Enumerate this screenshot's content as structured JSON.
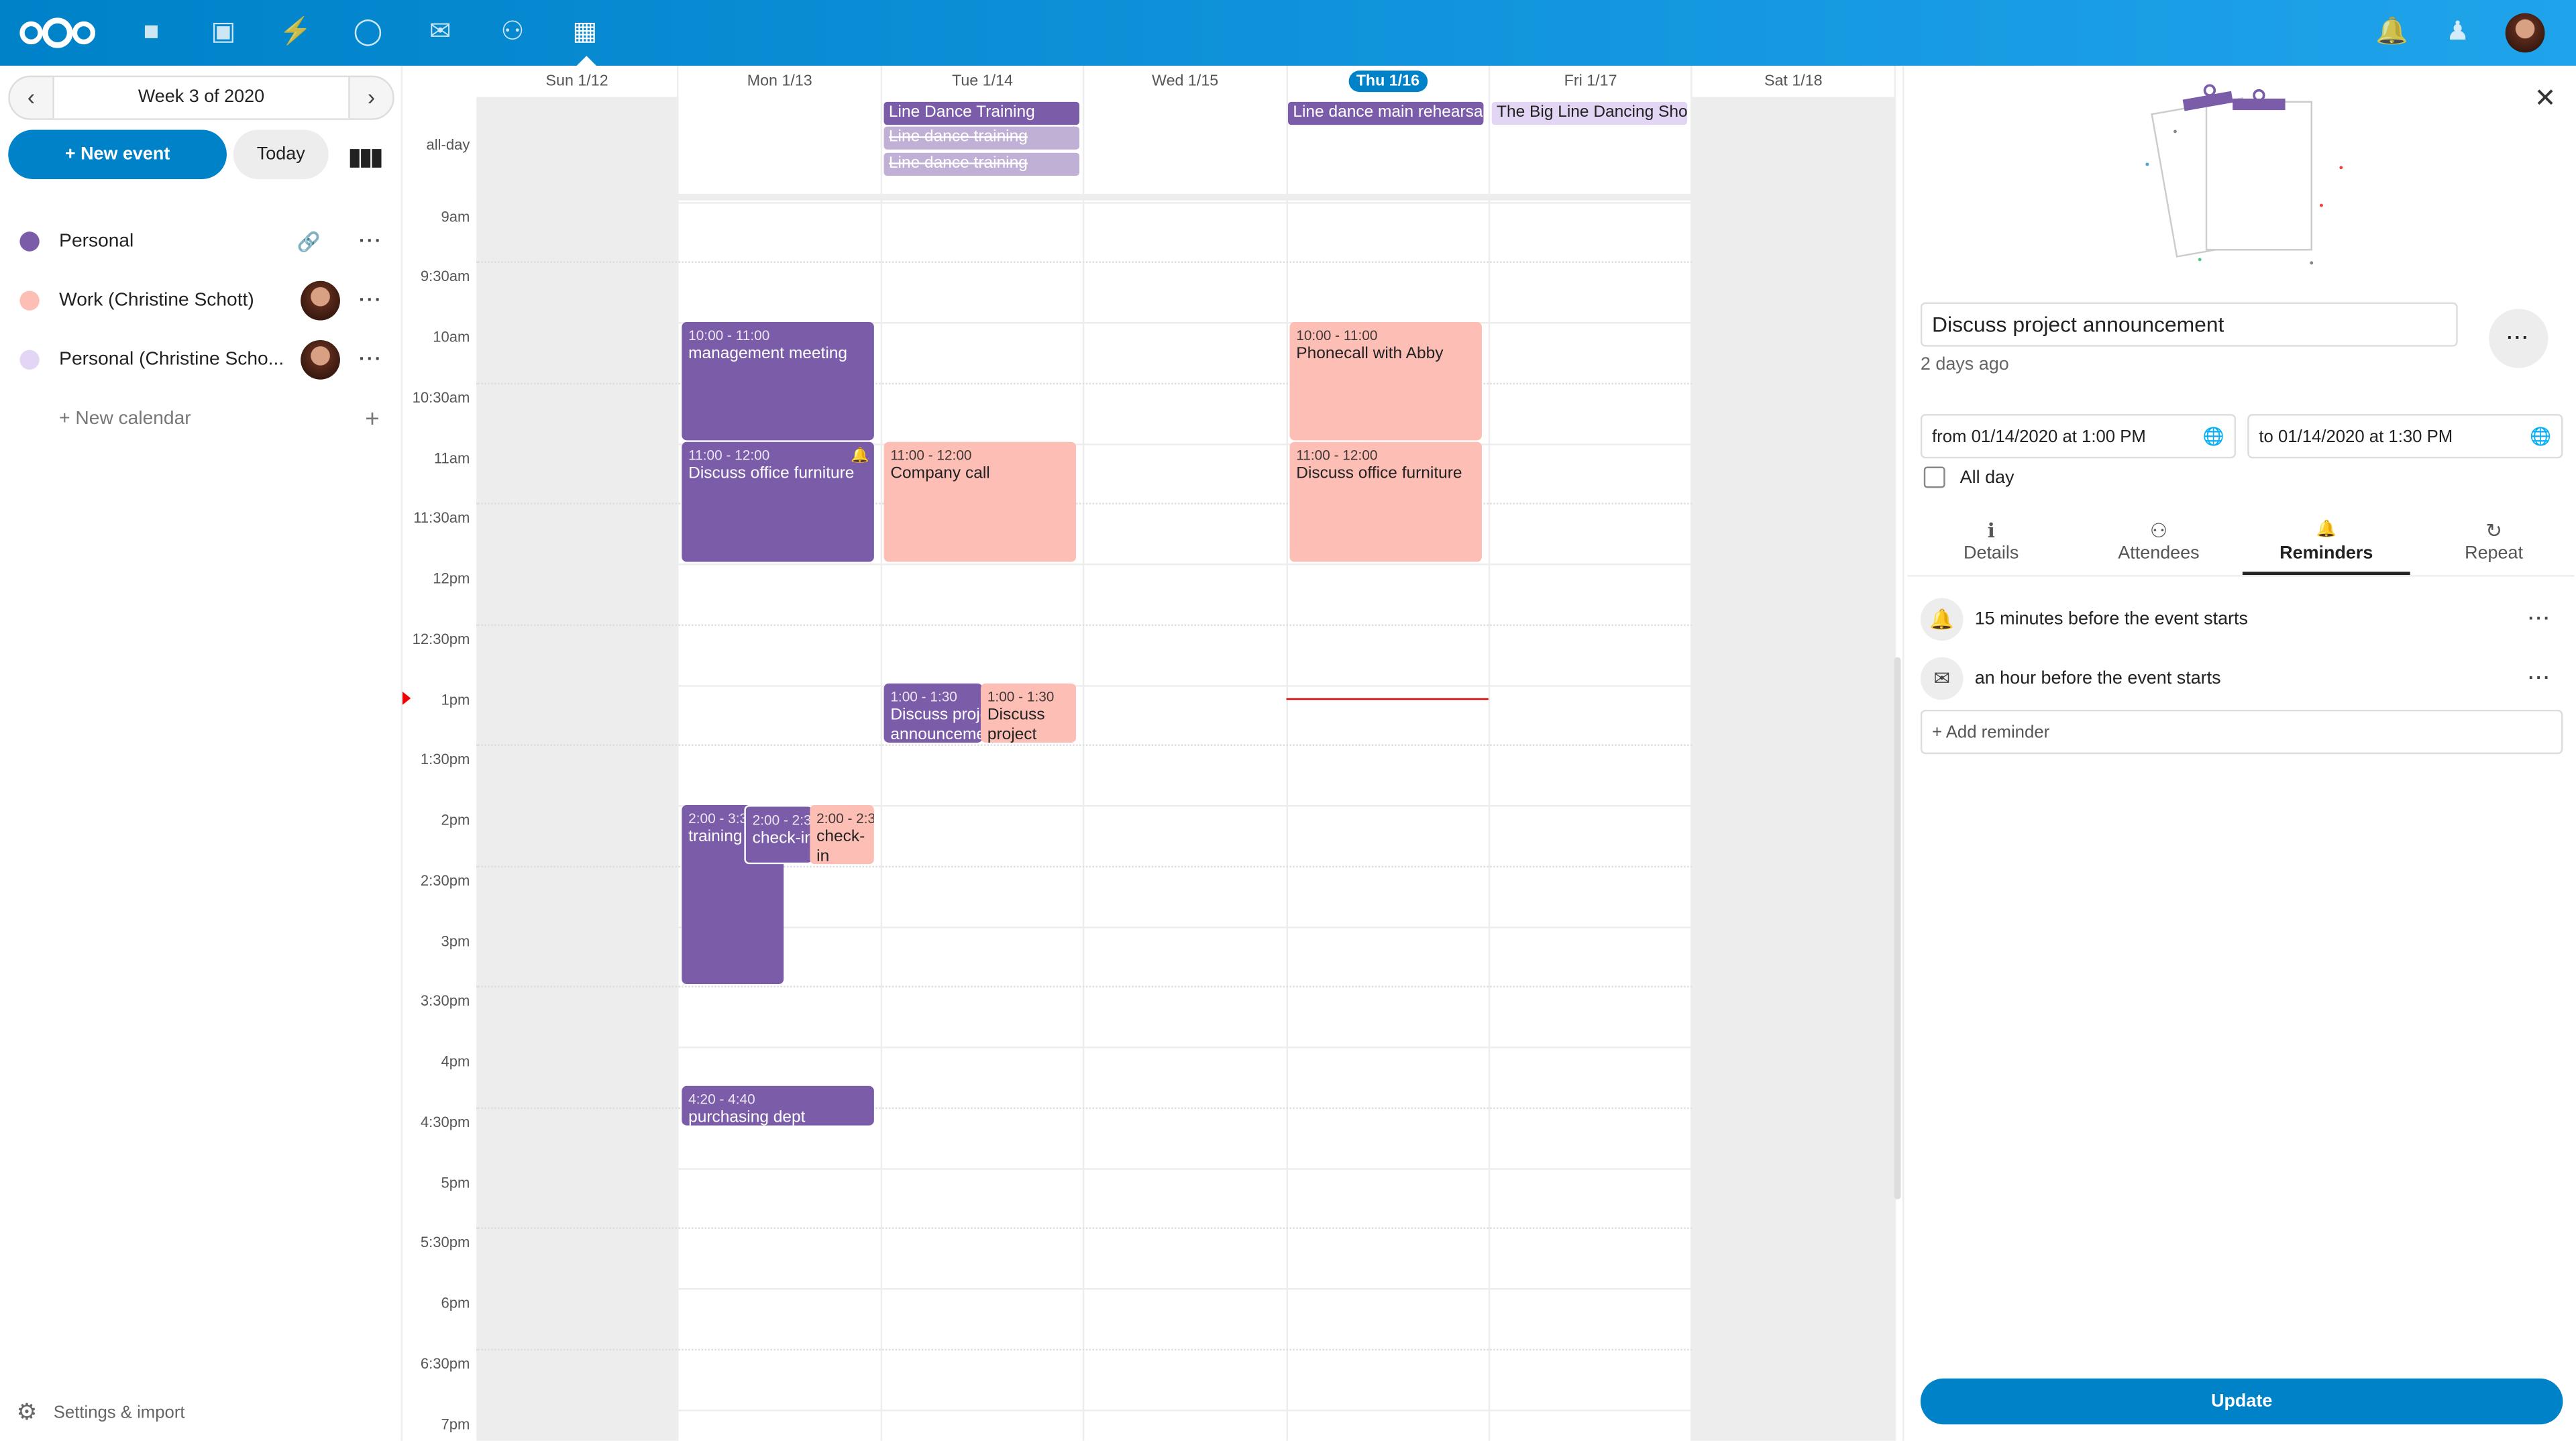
{
  "header": {
    "apps": [
      "logo",
      "files-icon",
      "photos-icon",
      "activity-icon",
      "talk-icon",
      "mail-icon",
      "contacts-icon",
      "calendar-icon"
    ]
  },
  "sidebar": {
    "week_label": "Week 3 of 2020",
    "new_event": "+ New event",
    "today": "Today",
    "calendars": [
      {
        "name": "Personal",
        "color": "#7b5ca9"
      },
      {
        "name": "Work (Christine Schott)",
        "color": "#fdbeb6"
      },
      {
        "name": "Personal (Christine Scho...",
        "color": "#e3d6f5"
      }
    ],
    "new_calendar": "+ New calendar",
    "settings": "Settings & import"
  },
  "calendar": {
    "days": [
      "Sun 1/12",
      "Mon 1/13",
      "Tue 1/14",
      "Wed 1/15",
      "Thu 1/16",
      "Fri 1/17",
      "Sat 1/18"
    ],
    "today_index": 4,
    "allday_label": "all-day",
    "times": [
      "9am",
      "9:30am",
      "10am",
      "10:30am",
      "11am",
      "11:30am",
      "12pm",
      "12:30pm",
      "1pm",
      "1:30pm",
      "2pm",
      "2:30pm",
      "3pm",
      "3:30pm",
      "4pm",
      "4:30pm",
      "5pm",
      "5:30pm",
      "6pm",
      "6:30pm",
      "7pm"
    ],
    "allday": [
      {
        "title": "Line Dance Training"
      },
      {
        "title": "Line dance training"
      },
      {
        "title": "Line dance training"
      },
      {
        "title": "Line dance main rehearsal"
      },
      {
        "title": "The Big Line Dancing Show"
      }
    ],
    "events": [
      {
        "time": "10:00 - 11:00",
        "title": "management meeting"
      },
      {
        "time": "11:00 - 12:00",
        "title": "Discuss office furniture"
      },
      {
        "time": "11:00 - 12:00",
        "title": "Company call"
      },
      {
        "time": "10:00 - 11:00",
        "title": "Phonecall with Abby"
      },
      {
        "time": "11:00 - 12:00",
        "title": "Discuss office furniture"
      },
      {
        "time": "1:00 - 1:30",
        "title": "Discuss project announcement"
      },
      {
        "time": "1:00 - 1:30",
        "title": "Discuss project"
      },
      {
        "time": "2:00 - 3:30",
        "title": "training"
      },
      {
        "time": "2:00 - 2:30",
        "title": "check-in"
      },
      {
        "time": "2:00 - 2:30",
        "title": "check-in"
      },
      {
        "time": "4:20 - 4:40",
        "title": "purchasing dept"
      }
    ]
  },
  "panel": {
    "title": "Discuss project announcement",
    "modified": "2 days ago",
    "from": "from 01/14/2020 at 1:00 PM",
    "to": "to 01/14/2020 at 1:30 PM",
    "all_day": "All day",
    "all_day_checked": false,
    "tabs": [
      "Details",
      "Attendees",
      "Reminders",
      "Repeat"
    ],
    "active_tab": "Reminders",
    "reminders": [
      {
        "icon": "bell-icon",
        "text": "15 minutes before the event starts"
      },
      {
        "icon": "mail-icon",
        "text": "an hour before the event starts"
      }
    ],
    "add_reminder": "+ Add reminder",
    "update": "Update"
  },
  "colors": {
    "accent": "#0082c9",
    "personal": "#7b5ca9",
    "work": "#fdbeb6"
  }
}
